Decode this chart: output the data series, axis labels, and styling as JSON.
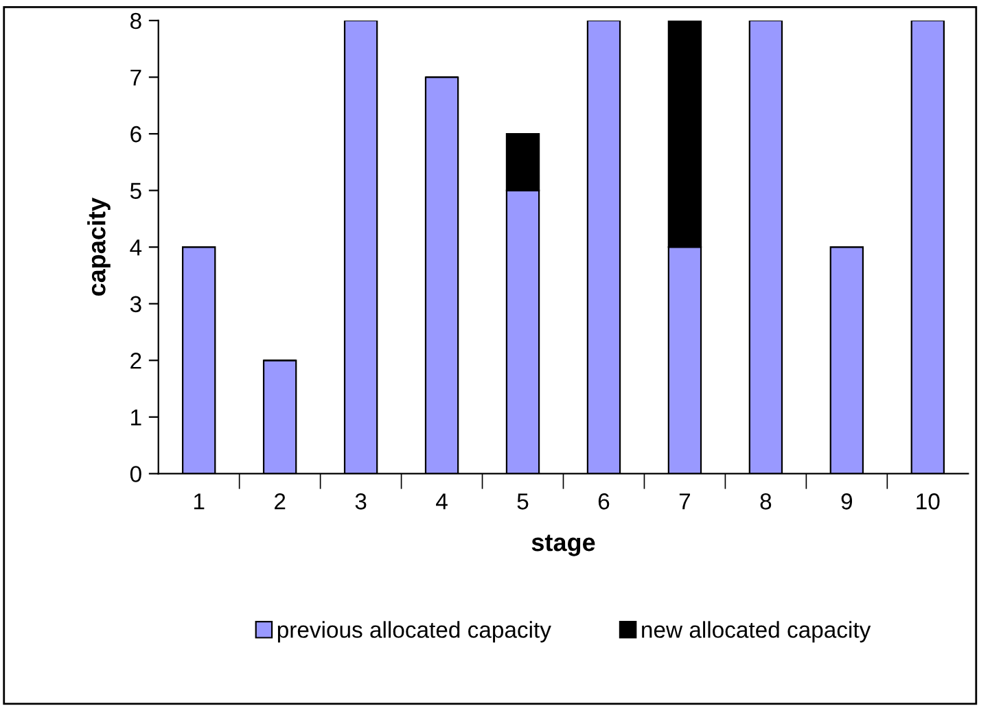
{
  "chart_data": {
    "type": "bar",
    "stacked": true,
    "xlabel": "stage",
    "ylabel": "capacity",
    "categories": [
      "1",
      "2",
      "3",
      "4",
      "5",
      "6",
      "7",
      "8",
      "9",
      "10"
    ],
    "series": [
      {
        "name": "previous allocated capacity",
        "color": "#9999ff",
        "values": [
          4,
          2,
          8,
          7,
          5,
          8,
          4,
          8,
          4,
          8
        ]
      },
      {
        "name": "new allocated capacity",
        "color": "#000000",
        "values": [
          0,
          0,
          0,
          0,
          1,
          0,
          4,
          0,
          0,
          0
        ]
      }
    ],
    "ylim": [
      0,
      8
    ],
    "yticks": [
      0,
      1,
      2,
      3,
      4,
      5,
      6,
      7,
      8
    ],
    "grid": false,
    "legend": "bottom"
  }
}
